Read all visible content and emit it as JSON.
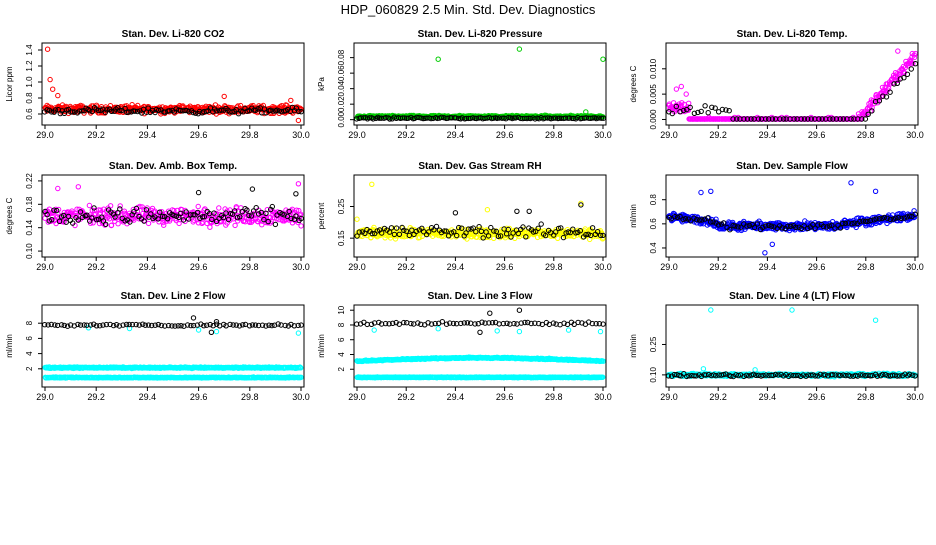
{
  "figure": {
    "title": "HDP_060829  2.5 Min. Std. Dev. Diagnostics",
    "x_ticks": [
      "29.0",
      "29.2",
      "29.4",
      "29.6",
      "29.8",
      "30.0"
    ]
  },
  "colors": {
    "black": "#000000",
    "red": "#ff0000",
    "green": "#00cc00",
    "magenta": "#ff00ff",
    "yellow": "#ffff00",
    "blue": "#0000ff",
    "cyan": "#00ffff"
  },
  "chart_data": [
    {
      "type": "scatter",
      "title": "Stan. Dev. Li-820 CO2",
      "ylabel": "Licor ppm",
      "xlim": [
        29.0,
        30.0
      ],
      "ylim": [
        0.5,
        1.45
      ],
      "yticks": [
        "0.6",
        "0.8",
        "1.0",
        "1.2",
        "1.4"
      ],
      "series": [
        {
          "name": "primary",
          "color": "red",
          "gen": "band",
          "center": 0.66,
          "spread": 0.07,
          "n": 430,
          "outliers": [
            [
              29.01,
              1.41
            ],
            [
              29.02,
              1.03
            ],
            [
              29.03,
              0.91
            ],
            [
              29.05,
              0.83
            ],
            [
              29.7,
              0.82
            ],
            [
              29.96,
              0.77
            ],
            [
              29.99,
              0.52
            ]
          ]
        },
        {
          "name": "secondary",
          "color": "black",
          "gen": "band",
          "center": 0.64,
          "spread": 0.05,
          "n": 120,
          "outliers": []
        }
      ]
    },
    {
      "type": "scatter",
      "title": "Stan. Dev. Li-820 Pressure",
      "ylabel": "kPa",
      "xlim": [
        29.0,
        30.0
      ],
      "ylim": [
        -0.003,
        0.095
      ],
      "yticks": [
        "0.00",
        "0.02",
        "0.04",
        "0.06",
        "0.08"
      ],
      "series": [
        {
          "name": "primary",
          "color": "green",
          "gen": "band",
          "center": 0.004,
          "spread": 0.002,
          "n": 420,
          "outliers": [
            [
              29.33,
              0.078
            ],
            [
              29.66,
              0.091
            ],
            [
              30.0,
              0.078
            ],
            [
              29.93,
              0.01
            ]
          ]
        },
        {
          "name": "secondary",
          "color": "black",
          "gen": "band",
          "center": 0.002,
          "spread": 0.0015,
          "n": 120,
          "outliers": []
        }
      ]
    },
    {
      "type": "scatter",
      "title": "Stan. Dev. Li-820 Temp.",
      "ylabel": "degrees C",
      "xlim": [
        29.0,
        30.0
      ],
      "ylim": [
        -0.0005,
        0.0145
      ],
      "yticks": [
        "0.000",
        "0.005",
        "0.010"
      ],
      "series": [
        {
          "name": "primary",
          "color": "magenta",
          "gen": "temp",
          "n": 400,
          "outliers": [
            [
              29.05,
              0.0065
            ],
            [
              29.03,
              0.006
            ],
            [
              29.07,
              0.005
            ],
            [
              29.93,
              0.0135
            ]
          ]
        },
        {
          "name": "secondary",
          "color": "black",
          "gen": "temp2",
          "n": 70,
          "outliers": []
        }
      ]
    },
    {
      "type": "scatter",
      "title": "Stan. Dev. Amb. Box Temp.",
      "ylabel": "degrees C",
      "xlim": [
        29.0,
        30.0
      ],
      "ylim": [
        0.095,
        0.225
      ],
      "yticks": [
        "0.10",
        "0.14",
        "0.18",
        "0.22"
      ],
      "series": [
        {
          "name": "primary",
          "color": "magenta",
          "gen": "band",
          "center": 0.16,
          "spread": 0.022,
          "n": 380,
          "outliers": [
            [
              29.13,
              0.21
            ],
            [
              29.99,
              0.215
            ],
            [
              29.05,
              0.207
            ]
          ]
        },
        {
          "name": "secondary",
          "color": "black",
          "gen": "band",
          "center": 0.16,
          "spread": 0.02,
          "n": 110,
          "outliers": [
            [
              29.81,
              0.206
            ],
            [
              29.98,
              0.198
            ],
            [
              29.6,
              0.2
            ]
          ]
        }
      ]
    },
    {
      "type": "scatter",
      "title": "Stan. Dev. Gas Stream RH",
      "ylabel": "percent",
      "xlim": [
        29.0,
        30.0
      ],
      "ylim": [
        0.1,
        0.34
      ],
      "yticks": [
        "0.15",
        "0.25"
      ],
      "series": [
        {
          "name": "primary",
          "color": "yellow",
          "gen": "band",
          "center": 0.165,
          "spread": 0.022,
          "n": 420,
          "outliers": [
            [
              29.06,
              0.32
            ],
            [
              29.0,
              0.21
            ],
            [
              29.91,
              0.26
            ],
            [
              29.53,
              0.24
            ]
          ]
        },
        {
          "name": "secondary",
          "color": "black",
          "gen": "band",
          "center": 0.17,
          "spread": 0.03,
          "n": 100,
          "outliers": [
            [
              29.65,
              0.235
            ],
            [
              29.7,
              0.235
            ],
            [
              29.91,
              0.255
            ],
            [
              29.4,
              0.23
            ]
          ]
        }
      ]
    },
    {
      "type": "scatter",
      "title": "Stan. Dev. Sample Flow",
      "ylabel": "ml/min",
      "xlim": [
        29.0,
        30.0
      ],
      "ylim": [
        0.35,
        0.98
      ],
      "yticks": [
        "0.4",
        "0.6",
        "0.8"
      ],
      "series": [
        {
          "name": "primary",
          "color": "blue",
          "gen": "flow",
          "n": 520,
          "outliers": [
            [
              29.13,
              0.86
            ],
            [
              29.17,
              0.87
            ],
            [
              29.39,
              0.36
            ],
            [
              29.42,
              0.43
            ],
            [
              29.74,
              0.94
            ],
            [
              29.84,
              0.87
            ]
          ]
        },
        {
          "name": "secondary",
          "color": "black",
          "gen": "flow2",
          "n": 90,
          "outliers": []
        }
      ]
    },
    {
      "type": "scatter",
      "title": "Stan. Dev. Line 2 Flow",
      "ylabel": "ml/min",
      "xlim": [
        29.0,
        30.0
      ],
      "ylim": [
        0.0,
        10.0
      ],
      "yticks": [
        "2",
        "4",
        "6",
        "8"
      ],
      "series": [
        {
          "name": "primary-upper",
          "color": "cyan",
          "gen": "band",
          "center": 2.15,
          "spread": 0.12,
          "n": 430,
          "outliers": []
        },
        {
          "name": "primary-lower",
          "color": "cyan",
          "gen": "band",
          "center": 0.85,
          "spread": 0.08,
          "n": 430,
          "outliers": [
            [
              29.17,
              7.4
            ],
            [
              29.33,
              7.3
            ],
            [
              29.6,
              7.1
            ],
            [
              29.67,
              6.9
            ],
            [
              29.99,
              6.7
            ]
          ]
        },
        {
          "name": "secondary",
          "color": "black",
          "gen": "band",
          "center": 7.75,
          "spread": 0.2,
          "n": 80,
          "outliers": [
            [
              29.58,
              8.7
            ],
            [
              29.65,
              6.8
            ],
            [
              29.67,
              8.2
            ]
          ]
        }
      ]
    },
    {
      "type": "scatter",
      "title": "Stan. Dev. Line 3 Flow",
      "ylabel": "ml/min",
      "xlim": [
        29.0,
        30.0
      ],
      "ylim": [
        0.0,
        10.3
      ],
      "yticks": [
        "2",
        "4",
        "6",
        "8",
        "10"
      ],
      "series": [
        {
          "name": "primary-upper",
          "color": "cyan",
          "gen": "line3",
          "n": 430,
          "outliers": []
        },
        {
          "name": "primary-lower",
          "color": "cyan",
          "gen": "band",
          "center": 0.9,
          "spread": 0.07,
          "n": 430,
          "outliers": [
            [
              29.07,
              7.3
            ],
            [
              29.33,
              7.5
            ],
            [
              29.57,
              7.2
            ],
            [
              29.66,
              7.1
            ],
            [
              29.86,
              7.3
            ],
            [
              29.99,
              7.1
            ]
          ]
        },
        {
          "name": "secondary",
          "color": "black",
          "gen": "band",
          "center": 8.2,
          "spread": 0.3,
          "n": 70,
          "outliers": [
            [
              29.54,
              9.6
            ],
            [
              29.66,
              10.0
            ],
            [
              29.5,
              7.0
            ]
          ]
        }
      ]
    },
    {
      "type": "scatter",
      "title": "Stan. Dev. Line 4 (LT) Flow",
      "ylabel": "ml/min",
      "xlim": [
        29.0,
        30.0
      ],
      "ylim": [
        0.055,
        0.43
      ],
      "yticks": [
        "0.10",
        "0.25"
      ],
      "series": [
        {
          "name": "primary",
          "color": "cyan",
          "gen": "band",
          "center": 0.1,
          "spread": 0.01,
          "n": 420,
          "outliers": [
            [
              29.17,
              0.42
            ],
            [
              29.5,
              0.42
            ],
            [
              29.84,
              0.37
            ],
            [
              29.14,
              0.13
            ],
            [
              29.35,
              0.125
            ]
          ]
        },
        {
          "name": "secondary",
          "color": "black",
          "gen": "band",
          "center": 0.098,
          "spread": 0.009,
          "n": 100,
          "outliers": []
        }
      ]
    }
  ]
}
